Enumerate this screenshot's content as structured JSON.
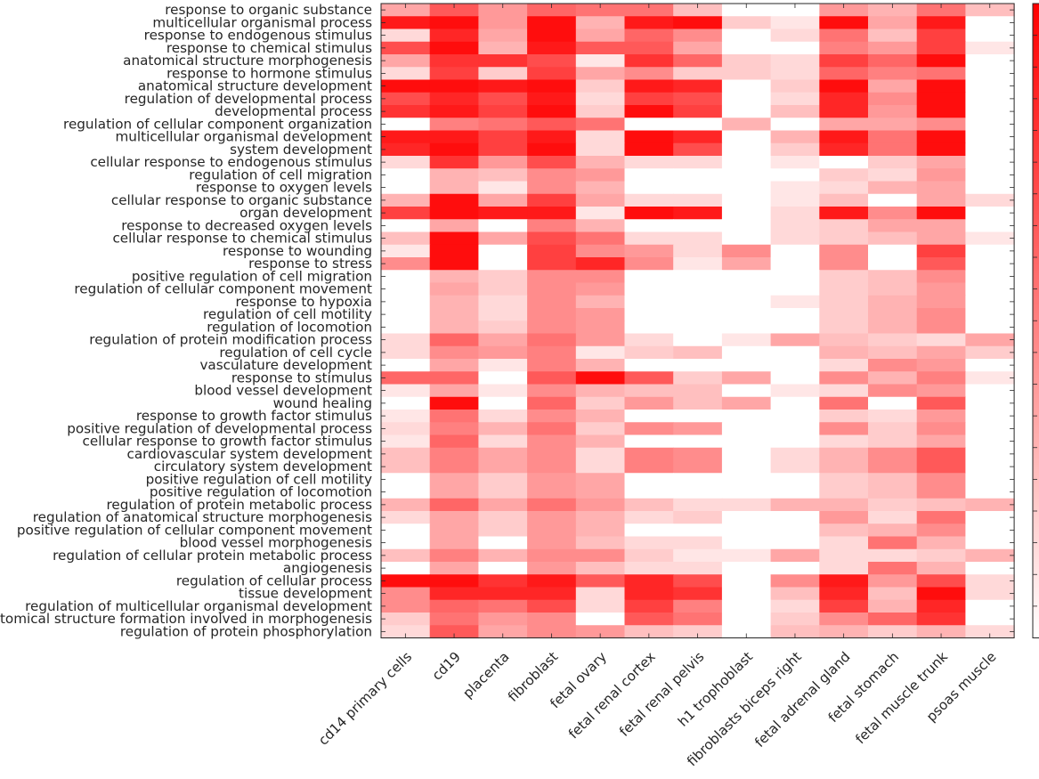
{
  "chart_data": {
    "type": "heatmap",
    "title": "",
    "xlabel": "",
    "ylabel": "",
    "colormap": "white-to-red",
    "colors": {
      "low": "#ffffff",
      "high": "#ff0000",
      "frame": "#262626",
      "text": "#262626"
    },
    "value_range": [
      0,
      1
    ],
    "colorbar": "right",
    "columns": [
      "cd14 primary cells",
      "cd19",
      "placenta",
      "fibroblast",
      "fetal ovary",
      "fetal renal cortex",
      "fetal renal pelvis",
      "h1 trophoblast",
      "fibroblasts biceps right",
      "fetal adrenal gland",
      "fetal stomach",
      "fetal muscle trunk",
      "psoas muscle"
    ],
    "rows": [
      "response to organic substance",
      "multicellular organismal process",
      "response to endogenous stimulus",
      "response to chemical stimulus",
      "anatomical structure morphogenesis",
      "response to hormone stimulus",
      "anatomical structure development",
      "regulation of developmental process",
      "developmental process",
      "regulation of cellular component organization",
      "multicellular organismal development",
      "system development",
      "cellular response to endogenous stimulus",
      "regulation of cell migration",
      "response to oxygen levels",
      "cellular response to organic substance",
      "organ development",
      "response to decreased oxygen levels",
      "cellular response to chemical stimulus",
      "response to wounding",
      "response to stress",
      "positive regulation of cell migration",
      "regulation of cellular component movement",
      "response to hypoxia",
      "regulation of cell motility",
      "regulation of locomotion",
      "regulation of protein modification process",
      "regulation of cell cycle",
      "vasculature development",
      "response to stimulus",
      "blood vessel development",
      "wound healing",
      "response to growth factor stimulus",
      "positive regulation of developmental process",
      "cellular response to growth factor stimulus",
      "cardiovascular system development",
      "circulatory system development",
      "positive regulation of cell motility",
      "positive regulation of locomotion",
      "regulation of protein metabolic process",
      "regulation of anatomical structure morphogenesis",
      "positive regulation of cellular component movement",
      "blood vessel morphogenesis",
      "regulation of cellular protein metabolic process",
      "angiogenesis",
      "regulation of cellular process",
      "tissue development",
      "regulation of multicellular organismal development",
      "anatomical structure formation involved in morphogenesis",
      "regulation of protein phosphorylation"
    ],
    "values": [
      [
        0.35,
        0.65,
        0.4,
        0.6,
        0.55,
        0.55,
        0.25,
        0.0,
        0.0,
        0.4,
        0.3,
        0.55,
        0.25
      ],
      [
        0.9,
        0.95,
        0.4,
        0.95,
        0.3,
        0.9,
        0.95,
        0.2,
        0.1,
        0.95,
        0.35,
        0.9,
        0.0
      ],
      [
        0.15,
        0.85,
        0.35,
        0.95,
        0.35,
        0.6,
        0.45,
        0.0,
        0.15,
        0.55,
        0.25,
        0.75,
        0.0
      ],
      [
        0.7,
        0.95,
        0.3,
        0.9,
        0.65,
        0.65,
        0.35,
        0.0,
        0.0,
        0.5,
        0.4,
        0.75,
        0.1
      ],
      [
        0.35,
        0.8,
        0.8,
        0.7,
        0.1,
        0.8,
        0.6,
        0.2,
        0.15,
        0.75,
        0.6,
        0.95,
        0.0
      ],
      [
        0.15,
        0.75,
        0.2,
        0.75,
        0.35,
        0.45,
        0.2,
        0.2,
        0.15,
        0.6,
        0.5,
        0.55,
        0.0
      ],
      [
        0.95,
        0.95,
        0.9,
        0.95,
        0.2,
        0.9,
        0.85,
        0.0,
        0.2,
        0.95,
        0.35,
        0.95,
        0.0
      ],
      [
        0.7,
        0.85,
        0.7,
        0.9,
        0.15,
        0.75,
        0.7,
        0.0,
        0.15,
        0.85,
        0.45,
        0.95,
        0.0
      ],
      [
        0.8,
        0.9,
        0.75,
        0.95,
        0.2,
        0.95,
        0.75,
        0.0,
        0.25,
        0.85,
        0.4,
        0.95,
        0.0
      ],
      [
        0.0,
        0.5,
        0.55,
        0.65,
        0.55,
        0.0,
        0.0,
        0.3,
        0.0,
        0.35,
        0.35,
        0.45,
        0.0
      ],
      [
        0.9,
        0.9,
        0.75,
        0.9,
        0.15,
        0.95,
        0.85,
        0.0,
        0.3,
        0.9,
        0.55,
        0.95,
        0.0
      ],
      [
        0.85,
        0.95,
        0.75,
        0.95,
        0.15,
        0.95,
        0.7,
        0.0,
        0.2,
        0.85,
        0.55,
        0.95,
        0.0
      ],
      [
        0.15,
        0.8,
        0.4,
        0.7,
        0.3,
        0.15,
        0.15,
        0.0,
        0.1,
        0.0,
        0.2,
        0.35,
        0.0
      ],
      [
        0.0,
        0.3,
        0.25,
        0.45,
        0.4,
        0.0,
        0.0,
        0.0,
        0.0,
        0.2,
        0.15,
        0.4,
        0.0
      ],
      [
        0.0,
        0.3,
        0.1,
        0.45,
        0.3,
        0.0,
        0.0,
        0.0,
        0.1,
        0.15,
        0.3,
        0.35,
        0.0
      ],
      [
        0.3,
        0.95,
        0.35,
        0.75,
        0.35,
        0.15,
        0.15,
        0.0,
        0.1,
        0.25,
        0.0,
        0.35,
        0.15
      ],
      [
        0.75,
        0.95,
        0.9,
        0.9,
        0.1,
        0.95,
        0.9,
        0.0,
        0.15,
        0.9,
        0.45,
        0.95,
        0.0
      ],
      [
        0.0,
        0.35,
        0.0,
        0.5,
        0.3,
        0.0,
        0.0,
        0.0,
        0.15,
        0.2,
        0.35,
        0.35,
        0.0
      ],
      [
        0.25,
        0.95,
        0.35,
        0.7,
        0.55,
        0.15,
        0.15,
        0.0,
        0.15,
        0.2,
        0.25,
        0.35,
        0.1
      ],
      [
        0.1,
        0.95,
        0.0,
        0.75,
        0.45,
        0.4,
        0.15,
        0.45,
        0.0,
        0.45,
        0.0,
        0.75,
        0.0
      ],
      [
        0.45,
        0.95,
        0.0,
        0.75,
        0.85,
        0.45,
        0.1,
        0.35,
        0.0,
        0.45,
        0.0,
        0.65,
        0.0
      ],
      [
        0.0,
        0.3,
        0.2,
        0.45,
        0.45,
        0.0,
        0.0,
        0.0,
        0.0,
        0.2,
        0.25,
        0.45,
        0.0
      ],
      [
        0.0,
        0.35,
        0.2,
        0.45,
        0.4,
        0.0,
        0.0,
        0.0,
        0.0,
        0.2,
        0.25,
        0.4,
        0.0
      ],
      [
        0.0,
        0.3,
        0.15,
        0.45,
        0.3,
        0.0,
        0.0,
        0.0,
        0.1,
        0.2,
        0.3,
        0.4,
        0.0
      ],
      [
        0.0,
        0.3,
        0.15,
        0.45,
        0.4,
        0.0,
        0.0,
        0.0,
        0.0,
        0.2,
        0.3,
        0.45,
        0.0
      ],
      [
        0.0,
        0.3,
        0.2,
        0.45,
        0.4,
        0.0,
        0.0,
        0.0,
        0.0,
        0.2,
        0.3,
        0.45,
        0.0
      ],
      [
        0.15,
        0.6,
        0.35,
        0.55,
        0.4,
        0.15,
        0.0,
        0.1,
        0.35,
        0.25,
        0.2,
        0.15,
        0.35
      ],
      [
        0.15,
        0.45,
        0.4,
        0.5,
        0.1,
        0.2,
        0.25,
        0.0,
        0.0,
        0.3,
        0.25,
        0.35,
        0.2
      ],
      [
        0.0,
        0.35,
        0.1,
        0.5,
        0.3,
        0.0,
        0.0,
        0.0,
        0.0,
        0.15,
        0.45,
        0.4,
        0.0
      ],
      [
        0.6,
        0.6,
        0.0,
        0.65,
        0.95,
        0.65,
        0.2,
        0.35,
        0.0,
        0.45,
        0.3,
        0.5,
        0.1
      ],
      [
        0.1,
        0.35,
        0.1,
        0.45,
        0.3,
        0.25,
        0.25,
        0.0,
        0.1,
        0.15,
        0.45,
        0.4,
        0.0
      ],
      [
        0.0,
        0.95,
        0.0,
        0.6,
        0.2,
        0.4,
        0.25,
        0.35,
        0.0,
        0.55,
        0.0,
        0.65,
        0.0
      ],
      [
        0.1,
        0.55,
        0.15,
        0.45,
        0.3,
        0.0,
        0.0,
        0.0,
        0.0,
        0.2,
        0.15,
        0.4,
        0.0
      ],
      [
        0.15,
        0.5,
        0.3,
        0.55,
        0.2,
        0.45,
        0.4,
        0.0,
        0.0,
        0.45,
        0.2,
        0.45,
        0.0
      ],
      [
        0.1,
        0.6,
        0.15,
        0.45,
        0.3,
        0.0,
        0.0,
        0.0,
        0.0,
        0.15,
        0.2,
        0.35,
        0.0
      ],
      [
        0.25,
        0.5,
        0.35,
        0.45,
        0.15,
        0.5,
        0.45,
        0.0,
        0.15,
        0.3,
        0.45,
        0.65,
        0.0
      ],
      [
        0.25,
        0.5,
        0.35,
        0.45,
        0.15,
        0.5,
        0.45,
        0.0,
        0.15,
        0.3,
        0.45,
        0.65,
        0.0
      ],
      [
        0.0,
        0.35,
        0.2,
        0.4,
        0.35,
        0.0,
        0.0,
        0.0,
        0.0,
        0.2,
        0.25,
        0.45,
        0.0
      ],
      [
        0.0,
        0.35,
        0.2,
        0.4,
        0.35,
        0.0,
        0.0,
        0.0,
        0.0,
        0.2,
        0.25,
        0.45,
        0.0
      ],
      [
        0.3,
        0.6,
        0.35,
        0.55,
        0.4,
        0.25,
        0.15,
        0.15,
        0.3,
        0.3,
        0.2,
        0.25,
        0.3
      ],
      [
        0.15,
        0.35,
        0.2,
        0.4,
        0.3,
        0.15,
        0.2,
        0.0,
        0.0,
        0.4,
        0.15,
        0.55,
        0.0
      ],
      [
        0.0,
        0.35,
        0.2,
        0.4,
        0.3,
        0.0,
        0.0,
        0.0,
        0.0,
        0.25,
        0.3,
        0.45,
        0.0
      ],
      [
        0.0,
        0.35,
        0.0,
        0.4,
        0.25,
        0.15,
        0.15,
        0.0,
        0.0,
        0.15,
        0.55,
        0.3,
        0.0
      ],
      [
        0.25,
        0.5,
        0.3,
        0.45,
        0.45,
        0.2,
        0.1,
        0.1,
        0.35,
        0.15,
        0.15,
        0.2,
        0.3
      ],
      [
        0.0,
        0.35,
        0.0,
        0.4,
        0.25,
        0.15,
        0.15,
        0.0,
        0.0,
        0.15,
        0.55,
        0.3,
        0.0
      ],
      [
        0.95,
        0.95,
        0.8,
        0.9,
        0.65,
        0.85,
        0.7,
        0.0,
        0.45,
        0.9,
        0.4,
        0.7,
        0.15
      ],
      [
        0.45,
        0.85,
        0.85,
        0.85,
        0.15,
        0.85,
        0.8,
        0.0,
        0.25,
        0.85,
        0.25,
        0.95,
        0.15
      ],
      [
        0.45,
        0.6,
        0.55,
        0.7,
        0.15,
        0.75,
        0.5,
        0.0,
        0.15,
        0.75,
        0.3,
        0.85,
        0.0
      ],
      [
        0.2,
        0.55,
        0.4,
        0.45,
        0.0,
        0.65,
        0.55,
        0.0,
        0.2,
        0.45,
        0.6,
        0.8,
        0.0
      ],
      [
        0.15,
        0.65,
        0.35,
        0.45,
        0.4,
        0.25,
        0.2,
        0.0,
        0.25,
        0.3,
        0.2,
        0.3,
        0.15
      ]
    ]
  }
}
